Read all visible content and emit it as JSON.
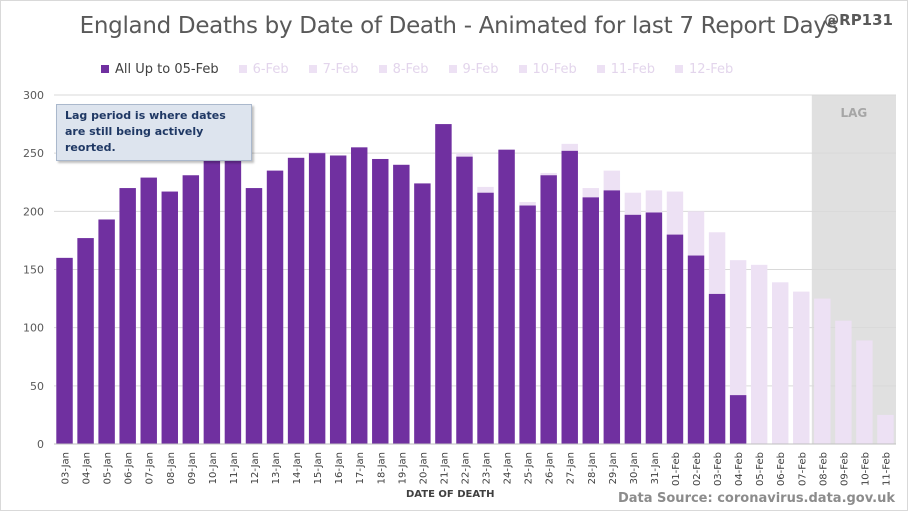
{
  "title": "England Deaths by Date of Death - Animated for last 7 Report Days",
  "handle": "@RP131",
  "note": "Lag period is where dates are still being actively reorted.",
  "source": "Data Source: coronavirus.data.gov.uk",
  "colors": {
    "primary": "#7030a0",
    "light": "#ede1f4",
    "lag_shade": "#e0e0e0",
    "grid": "#d9d9d9"
  },
  "legend": [
    {
      "label": "All Up to 05-Feb",
      "color": "#7030a0"
    },
    {
      "label": "6-Feb",
      "color": "#ede1f4"
    },
    {
      "label": "7-Feb",
      "color": "#ede1f4"
    },
    {
      "label": "8-Feb",
      "color": "#ede1f4"
    },
    {
      "label": "9-Feb",
      "color": "#ede1f4"
    },
    {
      "label": "10-Feb",
      "color": "#ede1f4"
    },
    {
      "label": "11-Feb",
      "color": "#ede1f4"
    },
    {
      "label": "12-Feb",
      "color": "#ede1f4"
    }
  ],
  "chart_data": {
    "type": "bar",
    "title": "England Deaths by Date of Death - Animated for last 7 Report Days",
    "xlabel": "DATE OF DEATH",
    "ylabel": "",
    "ylim": [
      0,
      300
    ],
    "yticks": [
      0,
      50,
      100,
      150,
      200,
      250,
      300
    ],
    "grid": true,
    "legend_position": "top",
    "lag_label": "LAG",
    "lag_start_category": "08-Feb",
    "categories": [
      "03-Jan",
      "04-Jan",
      "05-Jan",
      "06-Jan",
      "07-Jan",
      "08-Jan",
      "09-Jan",
      "10-Jan",
      "11-Jan",
      "12-Jan",
      "13-Jan",
      "14-Jan",
      "15-Jan",
      "16-Jan",
      "17-Jan",
      "18-Jan",
      "19-Jan",
      "20-Jan",
      "21-Jan",
      "22-Jan",
      "23-Jan",
      "24-Jan",
      "25-Jan",
      "26-Jan",
      "27-Jan",
      "28-Jan",
      "29-Jan",
      "30-Jan",
      "31-Jan",
      "01-Feb",
      "02-Feb",
      "03-Feb",
      "04-Feb",
      "05-Feb",
      "06-Feb",
      "07-Feb",
      "08-Feb",
      "09-Feb",
      "10-Feb",
      "11-Feb"
    ],
    "series": [
      {
        "name": "All Up to 05-Feb",
        "values": [
          160,
          177,
          193,
          220,
          229,
          217,
          231,
          250,
          245,
          220,
          235,
          246,
          250,
          248,
          255,
          245,
          240,
          224,
          275,
          247,
          216,
          253,
          205,
          231,
          252,
          212,
          218,
          197,
          199,
          180,
          162,
          129,
          42,
          0,
          0,
          0,
          0,
          0,
          0,
          0
        ]
      },
      {
        "name": "12-Feb",
        "values": [
          160,
          177,
          193,
          220,
          229,
          217,
          231,
          250,
          245,
          220,
          235,
          246,
          251,
          248,
          255,
          245,
          240,
          224,
          275,
          250,
          221,
          253,
          208,
          233,
          258,
          220,
          235,
          216,
          218,
          217,
          200,
          182,
          158,
          154,
          139,
          131,
          125,
          106,
          89,
          25
        ]
      }
    ]
  }
}
